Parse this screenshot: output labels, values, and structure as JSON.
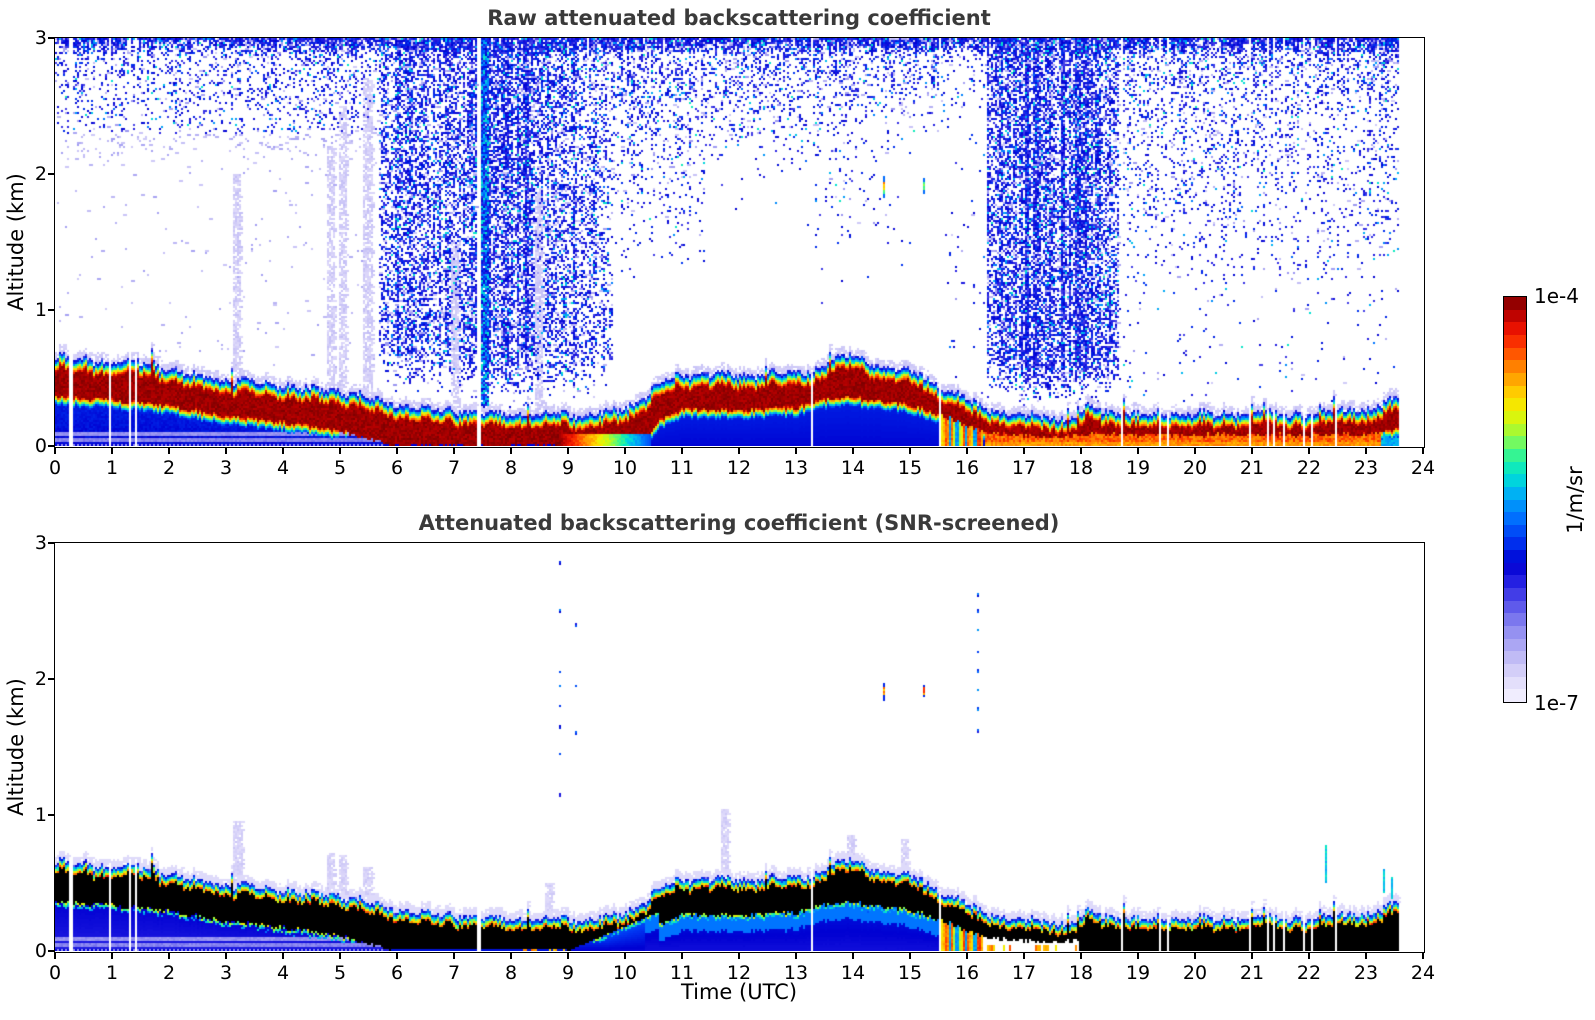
{
  "panels": [
    {
      "title": "Raw attenuated backscattering coefficient"
    },
    {
      "title": "Attenuated backscattering coefficient (SNR-screened)"
    }
  ],
  "axes": {
    "x_label": "Time (UTC)",
    "y_label": "Altitude (km)",
    "x_ticks": [
      0,
      1,
      2,
      3,
      4,
      5,
      6,
      7,
      8,
      9,
      10,
      11,
      12,
      13,
      14,
      15,
      16,
      17,
      18,
      19,
      20,
      21,
      22,
      23,
      24
    ],
    "y_ticks": [
      0,
      1,
      2,
      3
    ],
    "x_range": [
      0,
      24
    ],
    "y_range": [
      0,
      3
    ]
  },
  "colorbar": {
    "top_label": "1e-4",
    "bottom_label": "1e-7",
    "unit_label": "1/m/sr",
    "scale": "log",
    "n_steps": 32,
    "stops": [
      [
        0,
        "#f6f4ff"
      ],
      [
        0.06,
        "#ded9fa"
      ],
      [
        0.12,
        "#b9b4f4"
      ],
      [
        0.18,
        "#8f8cf0"
      ],
      [
        0.24,
        "#5a55ea"
      ],
      [
        0.3,
        "#211de2"
      ],
      [
        0.34,
        "#0000d2"
      ],
      [
        0.4,
        "#0036f2"
      ],
      [
        0.46,
        "#0076ff"
      ],
      [
        0.52,
        "#00b6f2"
      ],
      [
        0.56,
        "#00e2d2"
      ],
      [
        0.6,
        "#22f2a2"
      ],
      [
        0.64,
        "#72fa62"
      ],
      [
        0.68,
        "#baf922"
      ],
      [
        0.72,
        "#f0f200"
      ],
      [
        0.76,
        "#ffd200"
      ],
      [
        0.8,
        "#ffa200"
      ],
      [
        0.84,
        "#ff7200"
      ],
      [
        0.88,
        "#ff3a00"
      ],
      [
        0.92,
        "#ea1200"
      ],
      [
        0.96,
        "#b60000"
      ],
      [
        1,
        "#7f0000"
      ]
    ]
  },
  "chart_data": {
    "type": "heatmap",
    "x_variable": "Time (UTC), hours",
    "x_range": [
      0,
      24
    ],
    "y_variable": "Altitude (km)",
    "y_range": [
      0,
      3
    ],
    "value_variable": "attenuated backscattering coefficient (1/m/sr)",
    "value_scale": "log",
    "value_min": "1e-7",
    "value_max": "1e-4",
    "data_end_time": 23.57,
    "layer_top_km": [
      [
        0,
        0.66
      ],
      [
        0.5,
        0.64
      ],
      [
        1,
        0.62
      ],
      [
        1.5,
        0.62
      ],
      [
        2,
        0.56
      ],
      [
        2.5,
        0.52
      ],
      [
        3,
        0.48
      ],
      [
        3.5,
        0.47
      ],
      [
        4,
        0.45
      ],
      [
        4.5,
        0.42
      ],
      [
        5,
        0.4
      ],
      [
        5.5,
        0.36
      ],
      [
        6,
        0.31
      ],
      [
        6.5,
        0.27
      ],
      [
        7,
        0.26
      ],
      [
        7.5,
        0.25
      ],
      [
        8,
        0.24
      ],
      [
        8.5,
        0.23
      ],
      [
        9,
        0.235
      ],
      [
        9.5,
        0.24
      ],
      [
        10,
        0.27
      ],
      [
        10.3,
        0.35
      ],
      [
        10.6,
        0.46
      ],
      [
        10.9,
        0.52
      ],
      [
        11.5,
        0.54
      ],
      [
        12,
        0.52
      ],
      [
        12.5,
        0.54
      ],
      [
        13,
        0.55
      ],
      [
        13.3,
        0.56
      ],
      [
        13.5,
        0.62
      ],
      [
        13.8,
        0.66
      ],
      [
        14.2,
        0.63
      ],
      [
        14.6,
        0.58
      ],
      [
        15,
        0.55
      ],
      [
        15.3,
        0.5
      ],
      [
        15.6,
        0.42
      ],
      [
        16,
        0.33
      ],
      [
        16.5,
        0.26
      ],
      [
        17,
        0.22
      ],
      [
        17.5,
        0.2
      ],
      [
        17.9,
        0.21
      ],
      [
        18.15,
        0.3
      ],
      [
        18.4,
        0.26
      ],
      [
        19,
        0.23
      ],
      [
        19.5,
        0.24
      ],
      [
        20,
        0.235
      ],
      [
        20.5,
        0.23
      ],
      [
        21,
        0.25
      ],
      [
        21.5,
        0.23
      ],
      [
        22,
        0.24
      ],
      [
        22.5,
        0.26
      ],
      [
        23,
        0.26
      ],
      [
        23.3,
        0.3
      ],
      [
        23.55,
        0.36
      ]
    ],
    "layer_core_bottom_km": [
      [
        0,
        0.36
      ],
      [
        1,
        0.34
      ],
      [
        2,
        0.29
      ],
      [
        3,
        0.22
      ],
      [
        4,
        0.17
      ],
      [
        5,
        0.11
      ],
      [
        5.9,
        0
      ],
      [
        10.2,
        0
      ],
      [
        10.6,
        0.18
      ],
      [
        11,
        0.27
      ],
      [
        12,
        0.26
      ],
      [
        13,
        0.28
      ],
      [
        13.7,
        0.36
      ],
      [
        14.5,
        0.33
      ],
      [
        15,
        0.3
      ],
      [
        15.6,
        0.22
      ],
      [
        16,
        0.14
      ],
      [
        16.5,
        0.09
      ],
      [
        17.5,
        0.06
      ],
      [
        18.2,
        0.09
      ],
      [
        19,
        0.08
      ],
      [
        21,
        0.08
      ],
      [
        23,
        0.08
      ],
      [
        23.55,
        0.12
      ]
    ],
    "missing_data_times": [
      0.28,
      0.98,
      1.3,
      1.42,
      7.44,
      13.28,
      15.52,
      18.73,
      19.38,
      19.52,
      20.95,
      21.28,
      21.4,
      21.55,
      21.92,
      22.06,
      22.48
    ],
    "surface_red_transition": [
      8.8,
      10.45
    ],
    "ground_orange_interval": [
      16.3,
      23.25
    ],
    "ground_green_interval": [
      23.25,
      23.57
    ],
    "streak_interval": [
      15.55,
      16.28
    ],
    "cyan_noise_column": {
      "t0": 7.48,
      "t1": 7.6
    },
    "plumes_raw": [
      [
        3.12,
        3.28,
        2.0
      ],
      [
        4.78,
        4.92,
        2.2
      ],
      [
        4.98,
        5.12,
        2.5
      ],
      [
        5.42,
        5.58,
        2.7
      ],
      [
        6.95,
        7.08,
        1.5
      ],
      [
        8.42,
        8.55,
        1.9
      ]
    ],
    "plumes_screened": [
      [
        3.12,
        3.3,
        0.95
      ],
      [
        4.78,
        4.92,
        0.72
      ],
      [
        4.98,
        5.12,
        0.7
      ],
      [
        5.42,
        5.58,
        0.62
      ],
      [
        8.6,
        8.72,
        0.5
      ],
      [
        11.7,
        11.82,
        1.05
      ],
      [
        13.9,
        14.02,
        0.85
      ],
      [
        14.85,
        14.97,
        0.82
      ]
    ],
    "specks_raw": [
      [
        14.55,
        1.82,
        1.98
      ],
      [
        15.25,
        1.86,
        1.97
      ]
    ],
    "specks_screened": {
      "dashes": [
        [
          14.55,
          1.84,
          1.97
        ],
        [
          15.25,
          1.87,
          1.96
        ]
      ],
      "dot_columns": [
        [
          8.85,
          [
            1.15,
            1.45,
            1.65,
            1.8,
            1.95,
            2.05,
            2.5,
            2.85
          ]
        ],
        [
          9.15,
          [
            1.6,
            1.95,
            2.4
          ]
        ],
        [
          16.2,
          [
            1.62,
            1.78,
            1.92,
            2.06,
            2.2,
            2.36,
            2.5,
            2.62
          ]
        ]
      ],
      "cyan_spikes": [
        [
          22.3,
          0.5,
          0.78
        ],
        [
          23.32,
          0.42,
          0.6
        ],
        [
          23.47,
          0.38,
          0.55
        ]
      ]
    }
  }
}
